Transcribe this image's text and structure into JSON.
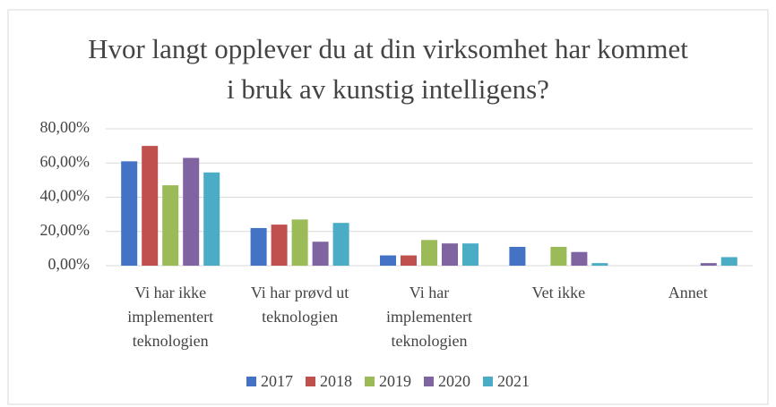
{
  "chart_data": {
    "type": "bar",
    "title": "Hvor langt opplever du at din virksomhet har kommet i bruk av kunstig intelligens?",
    "categories": [
      "Vi har ikke implementert teknologien",
      "Vi har prøvd ut teknologien",
      "Vi har implementert teknologien",
      "Vet ikke",
      "Annet"
    ],
    "series": [
      {
        "name": "2017",
        "color": "#4472c4",
        "values": [
          61,
          22,
          6,
          11,
          null
        ]
      },
      {
        "name": "2018",
        "color": "#c0504d",
        "values": [
          70,
          24,
          6,
          null,
          null
        ]
      },
      {
        "name": "2019",
        "color": "#9bbb59",
        "values": [
          47,
          27,
          15,
          11,
          null
        ]
      },
      {
        "name": "2020",
        "color": "#8064a2",
        "values": [
          63,
          14,
          13,
          8,
          1.5
        ]
      },
      {
        "name": "2021",
        "color": "#4bacc6",
        "values": [
          54.5,
          25,
          13,
          1.5,
          5
        ]
      }
    ],
    "ylim": [
      0,
      80
    ],
    "yticks": [
      {
        "value": 0,
        "label": "0,00%"
      },
      {
        "value": 20,
        "label": "20,00%"
      },
      {
        "value": 40,
        "label": "40,00%"
      },
      {
        "value": 60,
        "label": "60,00%"
      },
      {
        "value": 80,
        "label": "80,00%"
      }
    ],
    "grid": true,
    "legend": "bottom"
  }
}
